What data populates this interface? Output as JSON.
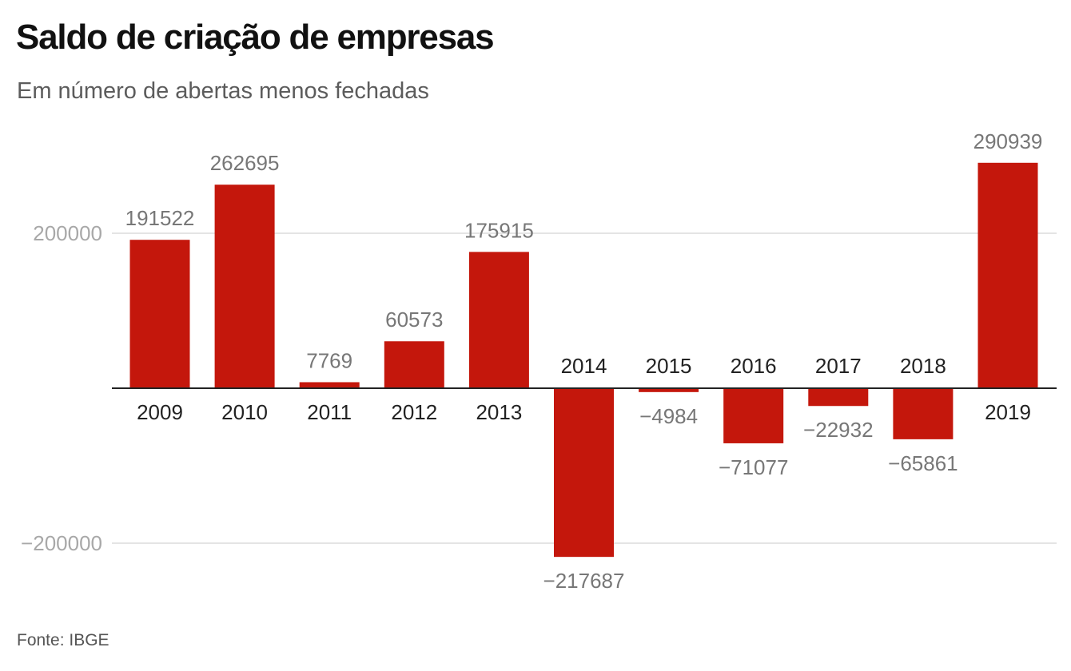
{
  "title": "Saldo de criação de empresas",
  "subtitle": "Em número de abertas menos fechadas",
  "source": "Fonte: IBGE",
  "colors": {
    "bar": "#c4170c",
    "value_label": "#777777",
    "category_label": "#222222",
    "tick_label": "#a8a8a8",
    "grid": "#dcdcdc"
  },
  "chart_data": {
    "type": "bar",
    "categories": [
      "2009",
      "2010",
      "2011",
      "2012",
      "2013",
      "2014",
      "2015",
      "2016",
      "2017",
      "2018",
      "2019"
    ],
    "values": [
      191522,
      262695,
      7769,
      60573,
      175915,
      -217687,
      -4984,
      -71077,
      -22932,
      -65861,
      290939
    ],
    "value_labels": [
      "191522",
      "262695",
      "7769",
      "60573",
      "175915",
      "−217687",
      "−4984",
      "−71077",
      "−22932",
      "−65861",
      "290939"
    ],
    "yticks": [
      200000,
      -200000
    ],
    "ytick_labels": [
      "200000",
      "−200000"
    ],
    "ylim": [
      -220000,
      300000
    ],
    "grid": true,
    "legend": "none"
  }
}
